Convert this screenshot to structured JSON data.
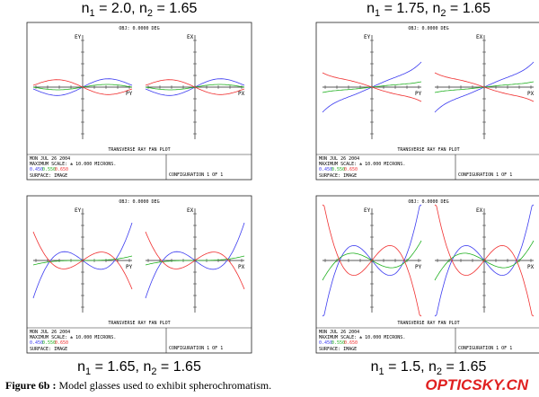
{
  "panels": [
    {
      "title": [
        "n",
        "1",
        " = 2.0, n",
        "2",
        " = 1.65"
      ],
      "object": "OBJ: 0.0000 DEG",
      "plot_labels": [
        "EY",
        "PY",
        "EX",
        "PX"
      ],
      "plot_title": "TRANSVERSE RAY FAN PLOT",
      "date": "MON JUL 26 2004",
      "scale": "MAXIMUM SCALE: ± 10.000 MICRONS.",
      "wavelengths": [
        "0.450",
        "0.550",
        "0.650"
      ],
      "surface": "SURFACE: IMAGE",
      "configuration": "CONFIGURATION 1 OF 1"
    },
    {
      "title": [
        "n",
        "1",
        " = 1.75, n",
        "2",
        " = 1.65"
      ],
      "object": "OBJ: 0.0000 DEG",
      "plot_labels": [
        "EY",
        "PY",
        "EX",
        "PX"
      ],
      "plot_title": "TRANSVERSE RAY FAN PLOT",
      "date": "MON JUL 26 2004",
      "scale": "MAXIMUM SCALE: ± 10.000 MICRONS.",
      "wavelengths": [
        "0.450",
        "0.550",
        "0.650"
      ],
      "surface": "SURFACE: IMAGE",
      "configuration": "CONFIGURATION 1 OF 1"
    },
    {
      "title": [
        "n",
        "1",
        " = 1.65, n",
        "2",
        " = 1.65"
      ],
      "object": "OBJ: 0.0000 DEG",
      "plot_labels": [
        "EY",
        "PY",
        "EX",
        "PX"
      ],
      "plot_title": "TRANSVERSE RAY FAN PLOT",
      "date": "MON JUL 26 2004",
      "scale": "MAXIMUM SCALE: ± 10.000 MICRONS.",
      "wavelengths": [
        "0.450",
        "0.550",
        "0.650"
      ],
      "surface": "SURFACE: IMAGE",
      "configuration": "CONFIGURATION 1 OF 1"
    },
    {
      "title": [
        "n",
        "1",
        " = 1.5, n",
        "2",
        " = 1.65"
      ],
      "object": "OBJ: 0.0000 DEG",
      "plot_labels": [
        "EY",
        "PY",
        "EX",
        "PX"
      ],
      "plot_title": "TRANSVERSE RAY FAN PLOT",
      "date": "MON JUL 26 2004",
      "scale": "MAXIMUM SCALE: ± 10.000 MICRONS.",
      "wavelengths": [
        "0.450",
        "0.550",
        "0.650"
      ],
      "surface": "SURFACE: IMAGE",
      "configuration": "CONFIGURATION 1 OF 1"
    }
  ],
  "caption": {
    "label": "Figure 6b :",
    "text": " Model glasses used to exhibit spherochromatism."
  },
  "watermark": "OPTICSKY.CN"
}
